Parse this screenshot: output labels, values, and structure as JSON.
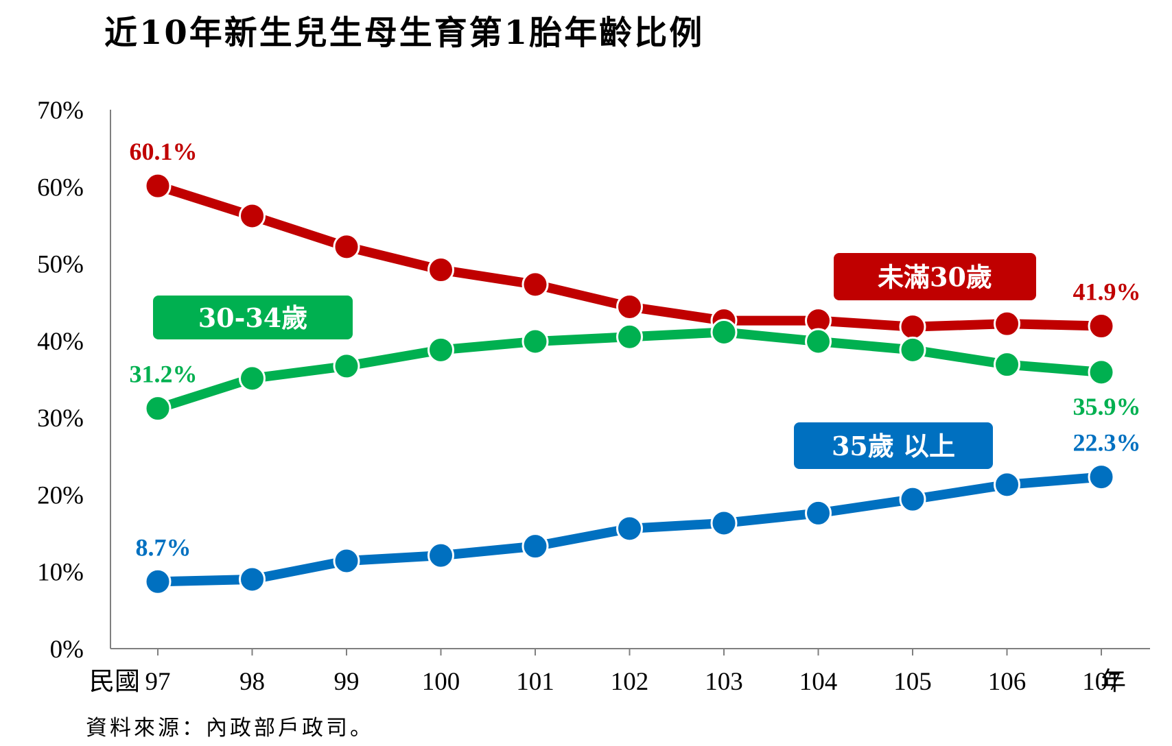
{
  "title": "近10年新生兒生母生育第1胎年齡比例",
  "source": "資料來源：內政部戶政司。",
  "x_prefix": "民國",
  "x_suffix": "年",
  "chart_data": {
    "type": "line",
    "title": "近10年新生兒生母生育第1胎年齡比例",
    "x": [
      "97",
      "98",
      "99",
      "100",
      "101",
      "102",
      "103",
      "104",
      "105",
      "106",
      "107"
    ],
    "ylim": [
      0,
      70
    ],
    "yticks": [
      "0%",
      "10%",
      "20%",
      "30%",
      "40%",
      "50%",
      "60%",
      "70%"
    ],
    "grid": false,
    "series": [
      {
        "name": "未滿30歲",
        "color": "#C00000",
        "values": [
          60.1,
          56.2,
          52.2,
          49.2,
          47.3,
          44.4,
          42.6,
          42.6,
          41.8,
          42.2,
          41.9
        ],
        "labels": [
          {
            "index": 0,
            "text": "60.1%",
            "place": "above"
          },
          {
            "index": 10,
            "text": "41.9%",
            "place": "above"
          }
        ],
        "legend_badge": "未滿30歲"
      },
      {
        "name": "30-34歲",
        "color": "#00B050",
        "values": [
          31.2,
          35.1,
          36.7,
          38.8,
          39.9,
          40.5,
          41.1,
          39.9,
          38.8,
          36.9,
          35.9
        ],
        "labels": [
          {
            "index": 0,
            "text": "31.2%",
            "place": "above"
          },
          {
            "index": 10,
            "text": "35.9%",
            "place": "below"
          }
        ],
        "legend_badge": "30-34歲"
      },
      {
        "name": "35歲以上",
        "color": "#0070C0",
        "values": [
          8.7,
          9.0,
          11.4,
          12.1,
          13.3,
          15.6,
          16.3,
          17.6,
          19.4,
          21.3,
          22.3
        ],
        "labels": [
          {
            "index": 0,
            "text": "8.7%",
            "place": "above"
          },
          {
            "index": 10,
            "text": "22.3%",
            "place": "above"
          }
        ],
        "legend_badge": "35歲 以上"
      }
    ]
  }
}
